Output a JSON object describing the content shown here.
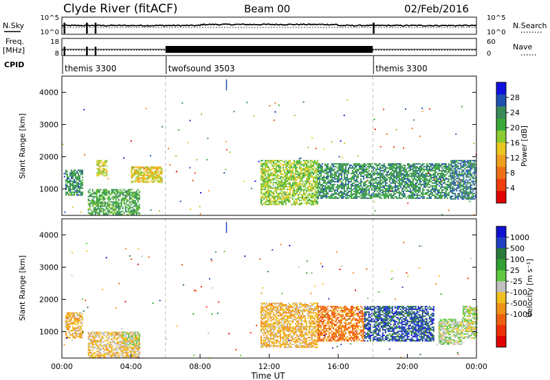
{
  "header": {
    "title": "Clyde River (fitACF)",
    "beam": "Beam 00",
    "date": "02/Feb/2016"
  },
  "noise_panel": {
    "left_label": "N.Sky",
    "right_label": "N.Search",
    "yticks_left": [
      "10^5",
      "10^0"
    ],
    "yticks_right": [
      "10^5",
      "10^0"
    ]
  },
  "freq_panel": {
    "left_label_1": "Freq.",
    "left_label_2": "[MHz]",
    "right_label": "Nave",
    "yticks_left": [
      "18",
      "8"
    ],
    "yticks_right": [
      "60",
      "0"
    ]
  },
  "cpid": {
    "label": "CPID",
    "segments": [
      {
        "name": "themis 3300",
        "start_h": 0,
        "end_h": 6
      },
      {
        "name": "twofsound 3503",
        "start_h": 6,
        "end_h": 18
      },
      {
        "name": "themis 3300",
        "start_h": 18,
        "end_h": 24
      }
    ]
  },
  "x_axis": {
    "label": "Time UT",
    "ticks": [
      "00:00",
      "04:00",
      "08:00",
      "12:00",
      "16:00",
      "20:00",
      "00:00"
    ]
  },
  "chart_data": [
    {
      "type": "heatmap",
      "title": "Power",
      "ylabel": "Slant Range [km]",
      "ylim": [
        180,
        4500
      ],
      "yticks": [
        "1000",
        "2000",
        "3000",
        "4000"
      ],
      "xlabel": "Time UT",
      "xlim_hours": [
        0,
        24
      ],
      "colorbar": {
        "label": "Power [dB]",
        "ticks": [
          "4",
          "8",
          "12",
          "16",
          "20",
          "24",
          "28"
        ],
        "colors": [
          "#1010e0",
          "#2050b0",
          "#3a8a5a",
          "#3aaa3a",
          "#8ccc30",
          "#e8c820",
          "#f0a020",
          "#f07018",
          "#f04010",
          "#e00000"
        ]
      },
      "features": [
        {
          "time_h": [
            0.2,
            1.2
          ],
          "range_km": [
            800,
            1600
          ],
          "level_db": 24
        },
        {
          "time_h": [
            1.5,
            4.5
          ],
          "range_km": [
            200,
            1000
          ],
          "level_db": 22
        },
        {
          "time_h": [
            2.0,
            2.6
          ],
          "range_km": [
            1400,
            1900
          ],
          "level_db": 16
        },
        {
          "time_h": [
            4.0,
            5.8
          ],
          "range_km": [
            1200,
            1700
          ],
          "level_db": 14
        },
        {
          "time_h": [
            11.5,
            14.8
          ],
          "range_km": [
            500,
            1900
          ],
          "level_db": 18
        },
        {
          "time_h": [
            14.8,
            22.5
          ],
          "range_km": [
            700,
            1800
          ],
          "level_db": 24
        },
        {
          "time_h": [
            22.5,
            24.0
          ],
          "range_km": [
            700,
            1900
          ],
          "level_db": 26
        }
      ]
    },
    {
      "type": "heatmap",
      "title": "Velocity",
      "ylabel": "Slant Range [km]",
      "ylim": [
        180,
        4500
      ],
      "yticks": [
        "1000",
        "2000",
        "3000",
        "4000"
      ],
      "xlabel": "Time UT",
      "xlim_hours": [
        0,
        24
      ],
      "colorbar": {
        "label": "Velocity [m s⁻¹]",
        "ticks": [
          "1000",
          "500",
          "100",
          "25",
          "-25",
          "-100",
          "-500",
          "-1000"
        ],
        "colors": [
          "#1010d0",
          "#2040c0",
          "#2a7a3a",
          "#30a030",
          "#60c840",
          "#c0c0c0",
          "#f0c020",
          "#f09018",
          "#f06010",
          "#f03008",
          "#e00000"
        ]
      },
      "features": [
        {
          "time_h": [
            0.2,
            1.2
          ],
          "range_km": [
            800,
            1600
          ],
          "velocity_ms": -300
        },
        {
          "time_h": [
            1.5,
            4.5
          ],
          "range_km": [
            200,
            1000
          ],
          "velocity_ms": -200
        },
        {
          "time_h": [
            3.5,
            4.5
          ],
          "range_km": [
            600,
            1000
          ],
          "velocity_ms": 0
        },
        {
          "time_h": [
            11.5,
            14.8
          ],
          "range_km": [
            500,
            1900
          ],
          "velocity_ms": -300
        },
        {
          "time_h": [
            14.8,
            17.5
          ],
          "range_km": [
            700,
            1800
          ],
          "velocity_ms": -600
        },
        {
          "time_h": [
            17.5,
            21.5
          ],
          "range_km": [
            700,
            1800
          ],
          "velocity_ms": 900
        },
        {
          "time_h": [
            21.8,
            23.2
          ],
          "range_km": [
            600,
            1400
          ],
          "velocity_ms": 80
        },
        {
          "time_h": [
            23.2,
            24.0
          ],
          "range_km": [
            800,
            1800
          ],
          "velocity_ms": 30
        }
      ]
    }
  ]
}
